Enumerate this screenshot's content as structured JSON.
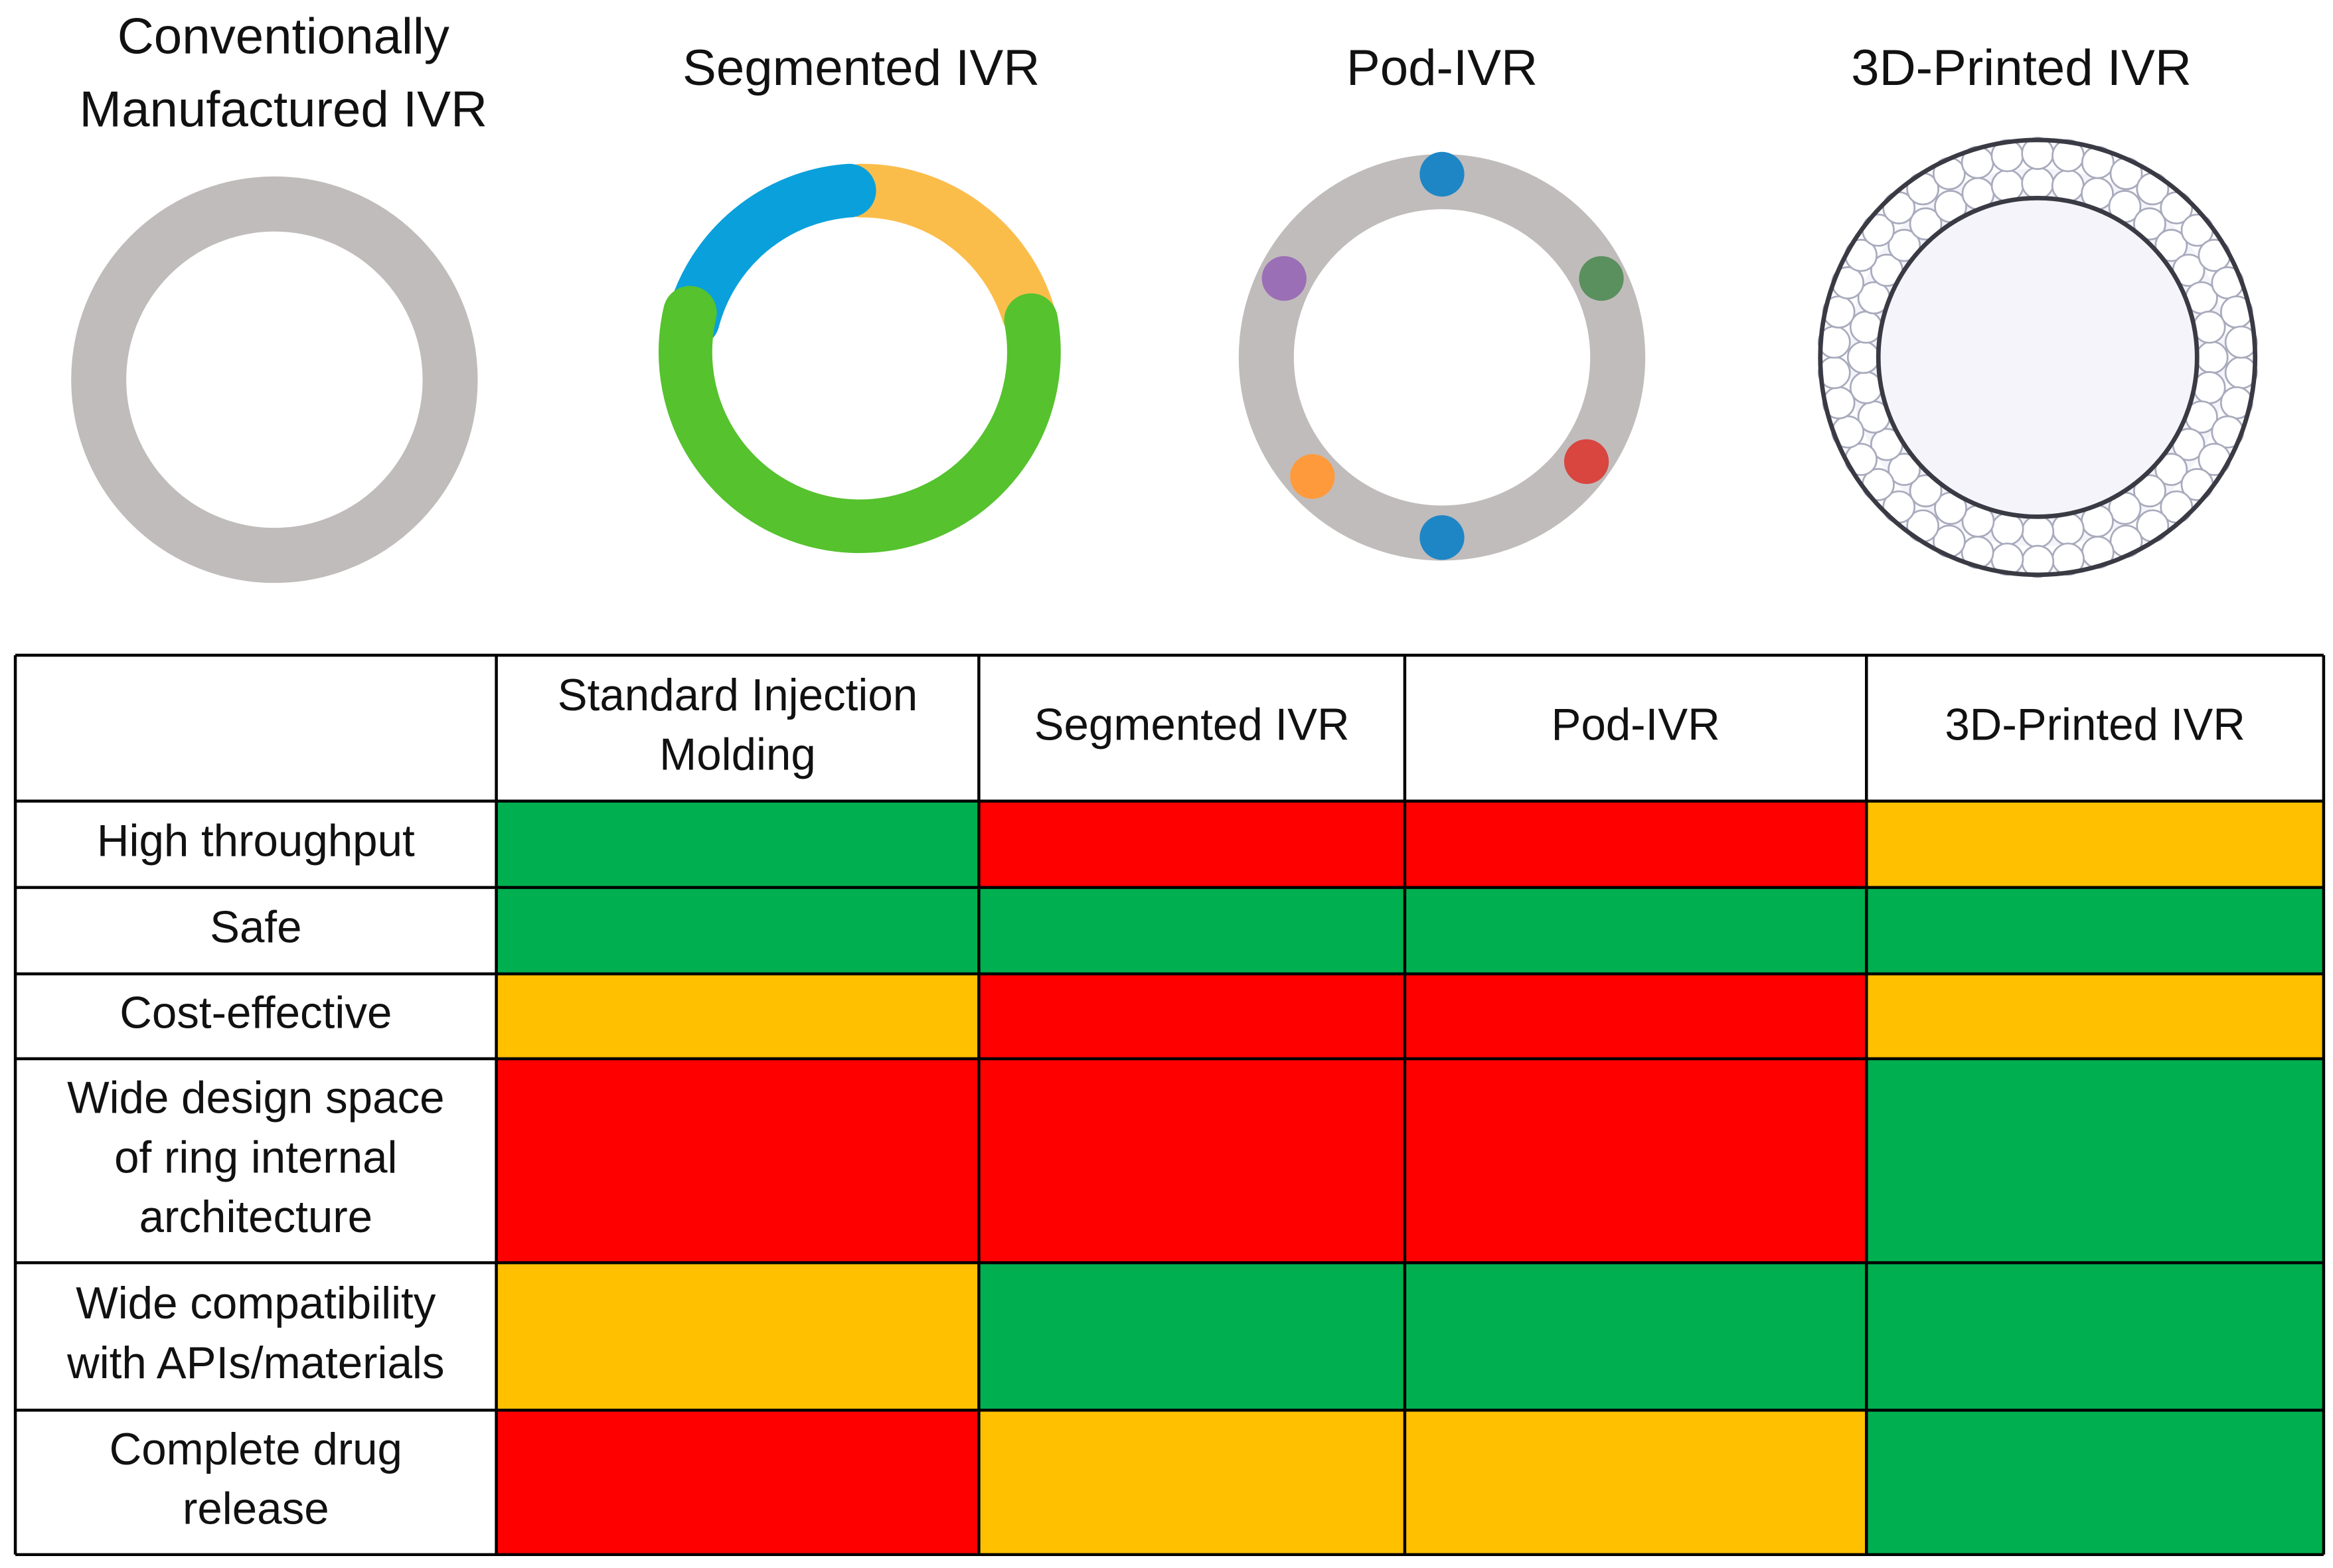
{
  "rings": [
    {
      "title": [
        "Conventionally",
        "Manufactured IVR"
      ]
    },
    {
      "title": [
        "Segmented IVR"
      ]
    },
    {
      "title": [
        "Pod-IVR"
      ]
    },
    {
      "title": [
        "3D-Printed IVR"
      ]
    }
  ],
  "table": {
    "columns": [
      [
        "Standard Injection",
        "Molding"
      ],
      [
        "Segmented IVR"
      ],
      [
        "Pod-IVR"
      ],
      [
        "3D-Printed IVR"
      ]
    ],
    "rows": [
      {
        "label": [
          "High throughput"
        ],
        "cells": [
          "#00b050",
          "#ff0000",
          "#ff0000",
          "#ffc000"
        ]
      },
      {
        "label": [
          "Safe"
        ],
        "cells": [
          "#00b050",
          "#00b050",
          "#00b050",
          "#00b050"
        ]
      },
      {
        "label": [
          "Cost-effective"
        ],
        "cells": [
          "#ffc000",
          "#ff0000",
          "#ff0000",
          "#ffc000"
        ]
      },
      {
        "label": [
          "Wide design space",
          "of ring internal",
          "architecture"
        ],
        "cells": [
          "#ff0000",
          "#ff0000",
          "#ff0000",
          "#00b050"
        ]
      },
      {
        "label": [
          "Wide compatibility",
          "with APIs/materials"
        ],
        "cells": [
          "#ffc000",
          "#00b050",
          "#00b050",
          "#00b050"
        ]
      },
      {
        "label": [
          "Complete drug",
          "release"
        ],
        "cells": [
          "#ff0000",
          "#ffc000",
          "#ffc000",
          "#00b050"
        ]
      }
    ]
  }
}
